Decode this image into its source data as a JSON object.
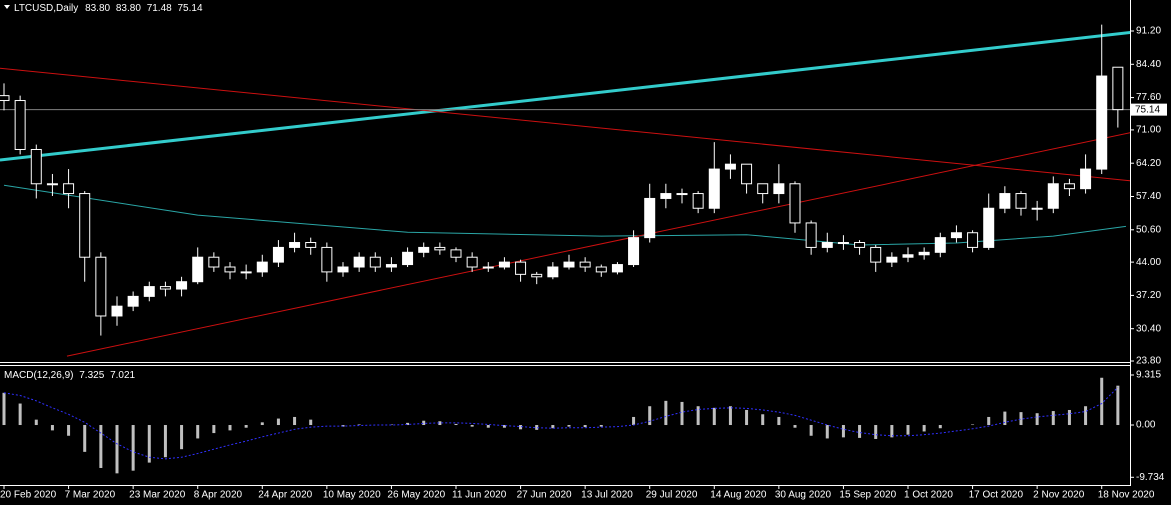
{
  "chart_data": {
    "type": "candlestick",
    "title": "LTCUSD,Daily",
    "ohlc_labels": [
      "83.80",
      "83.80",
      "71.48",
      "75.14"
    ],
    "up_color": "#ffffff",
    "down_color": "#000000",
    "wick_color": "#ffffff",
    "categories": [
      "20 Feb 2020",
      null,
      null,
      null,
      "7 Mar 2020",
      null,
      null,
      null,
      "23 Mar 2020",
      null,
      null,
      null,
      "8 Apr 2020",
      null,
      null,
      null,
      "24 Apr 2020",
      null,
      null,
      null,
      "10 May 2020",
      null,
      null,
      null,
      "26 May 2020",
      null,
      null,
      null,
      "11 Jun 2020",
      null,
      null,
      null,
      "27 Jun 2020",
      null,
      null,
      null,
      "13 Jul 2020",
      null,
      null,
      null,
      "29 Jul 2020",
      null,
      null,
      null,
      "14 Aug 2020",
      null,
      null,
      null,
      "30 Aug 2020",
      null,
      null,
      null,
      "15 Sep 2020",
      null,
      null,
      null,
      "1 Oct 2020",
      null,
      null,
      null,
      "17 Oct 2020",
      null,
      null,
      null,
      "2 Nov 2020",
      null,
      null,
      null,
      "18 Nov 2020",
      null
    ],
    "open": [
      78,
      77,
      67,
      60,
      60,
      58,
      45,
      33,
      35,
      37,
      39,
      38.5,
      40,
      45,
      43,
      42,
      42,
      44,
      47,
      48,
      47,
      42,
      43,
      45,
      43,
      43.5,
      46,
      47,
      46.5,
      45,
      43,
      43,
      44,
      41.5,
      41,
      43,
      44,
      43,
      42,
      43.5,
      49,
      57,
      58,
      58,
      55,
      63,
      64,
      60,
      58,
      60,
      52,
      47,
      48,
      48,
      47,
      44,
      45,
      45.5,
      46,
      49,
      50,
      47,
      55,
      58,
      55,
      55,
      60,
      59,
      63,
      83.8
    ],
    "high": [
      80.5,
      78,
      68,
      62,
      63,
      58.5,
      46,
      37,
      38,
      40,
      40,
      41,
      47,
      46,
      44,
      43.5,
      45.5,
      48.5,
      50,
      49,
      48,
      44,
      46,
      46,
      45,
      47,
      48,
      48,
      47,
      46,
      44,
      45,
      44.5,
      42,
      44,
      45.5,
      45,
      43.5,
      44,
      50.5,
      60,
      60,
      59,
      58.5,
      68.5,
      66,
      64,
      60,
      64,
      60.5,
      52.5,
      50,
      49.5,
      48.5,
      47.5,
      46,
      47,
      47,
      50,
      51.5,
      50.5,
      58,
      59.5,
      58.5,
      56.5,
      61.5,
      61,
      66,
      92.5,
      83.8
    ],
    "low": [
      75,
      66,
      57,
      57.5,
      55,
      40,
      29,
      31,
      34,
      36,
      37,
      37,
      39.5,
      42,
      40.5,
      40.5,
      41,
      43,
      46,
      45.5,
      40,
      41,
      42,
      42,
      42,
      43,
      45,
      45.5,
      44,
      42,
      42,
      42.5,
      40,
      39.5,
      40.5,
      42.5,
      42,
      41,
      41.5,
      43,
      48,
      55,
      56,
      54,
      54,
      61,
      58,
      56,
      56,
      50,
      45.5,
      46,
      46.5,
      45.5,
      42,
      43,
      44,
      44.5,
      45,
      48,
      46,
      46.5,
      54,
      53.5,
      52.5,
      54,
      57.5,
      58,
      62,
      71.48
    ],
    "close": [
      77,
      67,
      60,
      60,
      58,
      45,
      33,
      35,
      37,
      39,
      38.5,
      40,
      45,
      43,
      42,
      42,
      44,
      47,
      48,
      47,
      42,
      43,
      45,
      43,
      43.5,
      46,
      47,
      46.5,
      45,
      43,
      43,
      44,
      41.5,
      41,
      43,
      44,
      43,
      42,
      43.5,
      49,
      57,
      58,
      58,
      55,
      63,
      64,
      60,
      58,
      60,
      52,
      47,
      48,
      48,
      47,
      44,
      45,
      45.5,
      46,
      49,
      50,
      47,
      55,
      58,
      55,
      55,
      60,
      59,
      63,
      82,
      75.14
    ],
    "ylim": [
      23.6,
      97.53
    ],
    "yticks": [
      {
        "value": 91.2,
        "label": "91.20"
      },
      {
        "value": 84.4,
        "label": "84.40"
      },
      {
        "value": 77.6,
        "label": "77.60"
      },
      {
        "value": 71,
        "label": "71.00"
      },
      {
        "value": 64.2,
        "label": "64.20"
      },
      {
        "value": 57.4,
        "label": "57.40"
      },
      {
        "value": 50.6,
        "label": "50.60"
      },
      {
        "value": 44,
        "label": "44.00"
      },
      {
        "value": 37.2,
        "label": "37.20"
      },
      {
        "value": 30.4,
        "label": "30.40"
      },
      {
        "value": 23.8,
        "label": "23.80"
      }
    ],
    "bid_line_color": "#808080",
    "moving_average": {
      "color": "#2aa6a6",
      "points": [
        [
          0,
          59.7
        ],
        [
          12,
          53.6
        ],
        [
          25,
          50.1
        ],
        [
          37,
          49.3
        ],
        [
          46,
          49.6
        ],
        [
          53,
          47.5
        ],
        [
          59,
          47.9
        ],
        [
          65,
          49.3
        ],
        [
          69.5,
          51.3
        ]
      ]
    },
    "trendlines": [
      {
        "color": "#33cccc",
        "width": 3,
        "points": [
          [
            -0.25,
            64.85
          ],
          [
            70.6,
            91.2
          ]
        ]
      },
      {
        "color": "#cc1010",
        "width": 1,
        "points": [
          [
            -0.25,
            83.6
          ],
          [
            70.6,
            60.35
          ]
        ]
      },
      {
        "color": "#cc1010",
        "width": 1,
        "points": [
          [
            3.9,
            24.8
          ],
          [
            70.6,
            71.0
          ]
        ]
      }
    ],
    "macd": {
      "name": "MACD(12,26,9)",
      "hist_color": "#c0c0c0",
      "signal_color": "#3030ff",
      "hist": [
        6,
        4,
        1,
        -1,
        -2,
        -5,
        -8,
        -9,
        -8.5,
        -7,
        -6,
        -4.5,
        -2.5,
        -1.5,
        -1,
        -0.5,
        0.5,
        1.2,
        1.5,
        1,
        0,
        -0.3,
        0.1,
        0,
        0.1,
        0.4,
        0.8,
        0.7,
        0.2,
        -0.3,
        -0.5,
        -0.5,
        -0.8,
        -0.9,
        -0.6,
        -0.3,
        -0.4,
        -0.3,
        0,
        1.5,
        3.5,
        4.5,
        4.3,
        3.5,
        3.2,
        3.5,
        2.8,
        2,
        1.5,
        -0.5,
        -2,
        -2.5,
        -2.3,
        -2.4,
        -2.6,
        -2.3,
        -1.8,
        -1.2,
        -0.6,
        0,
        0.1,
        1.5,
        2.5,
        2.4,
        2.2,
        2.6,
        2.8,
        3.5,
        8.8,
        7.325
      ],
      "signal": [
        6,
        5.5,
        4.5,
        3.2,
        2,
        0.5,
        -1.5,
        -3.5,
        -5,
        -6,
        -6.3,
        -6,
        -5.3,
        -4.5,
        -3.7,
        -3,
        -2.2,
        -1.5,
        -0.8,
        -0.4,
        -0.2,
        -0.2,
        -0.1,
        0,
        0,
        0.1,
        0.3,
        0.4,
        0.4,
        0.3,
        0.1,
        -0.1,
        -0.3,
        -0.5,
        -0.6,
        -0.5,
        -0.5,
        -0.4,
        -0.3,
        0,
        0.7,
        1.6,
        2.4,
        2.9,
        3.1,
        3.2,
        3.1,
        2.8,
        2.4,
        1.8,
        0.9,
        0,
        -0.8,
        -1.4,
        -1.8,
        -2,
        -2,
        -1.8,
        -1.5,
        -1.1,
        -0.7,
        -0.2,
        0.5,
        1.1,
        1.5,
        1.8,
        2.1,
        2.5,
        4,
        7.021
      ],
      "ylim": [
        -11.17,
        10.99
      ],
      "yticks": [
        9.315,
        {
          "value": 0,
          "label": "0.00"
        },
        -9.734
      ]
    }
  }
}
